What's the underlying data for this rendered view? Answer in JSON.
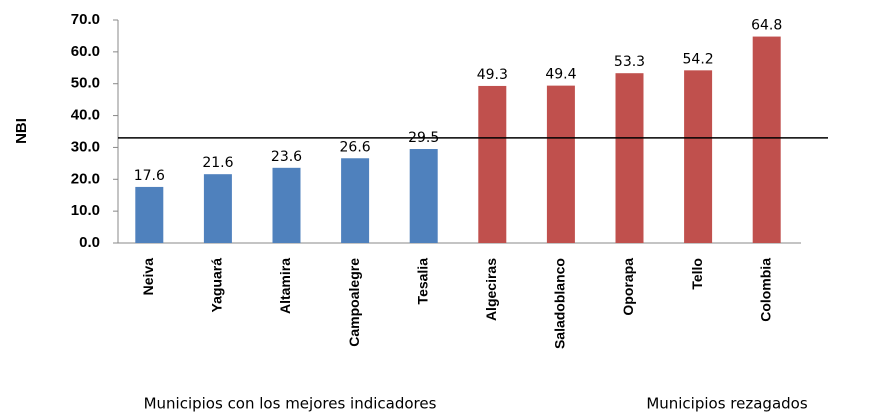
{
  "chart_data": {
    "type": "bar",
    "y_label": "NBI",
    "categories": [
      "Neiva",
      "Yaguará",
      "Altamira",
      "Campoalegre",
      "Tesalia",
      "Algeciras",
      "Saladoblanco",
      "Oporapa",
      "Tello",
      "Colombia"
    ],
    "values": [
      17.6,
      21.6,
      23.6,
      26.6,
      29.5,
      49.3,
      49.4,
      53.3,
      54.2,
      64.8
    ],
    "colors": [
      "#4f81bd",
      "#4f81bd",
      "#4f81bd",
      "#4f81bd",
      "#4f81bd",
      "#c0504d",
      "#c0504d",
      "#c0504d",
      "#c0504d",
      "#c0504d"
    ],
    "ylim": [
      0,
      70
    ],
    "yticks": [
      {
        "value": 0,
        "label": "0.0"
      },
      {
        "value": 10,
        "label": "10.0"
      },
      {
        "value": 20,
        "label": "20.0"
      },
      {
        "value": 30,
        "label": "30.0"
      },
      {
        "value": 40,
        "label": "40.0"
      },
      {
        "value": 50,
        "label": "50.0"
      },
      {
        "value": 60,
        "label": "60.0"
      },
      {
        "value": 70,
        "label": "70.0"
      }
    ],
    "reference_line": 33,
    "group_labels": [
      "Municipios con los mejores indicadores",
      "Municipios rezagados"
    ]
  }
}
